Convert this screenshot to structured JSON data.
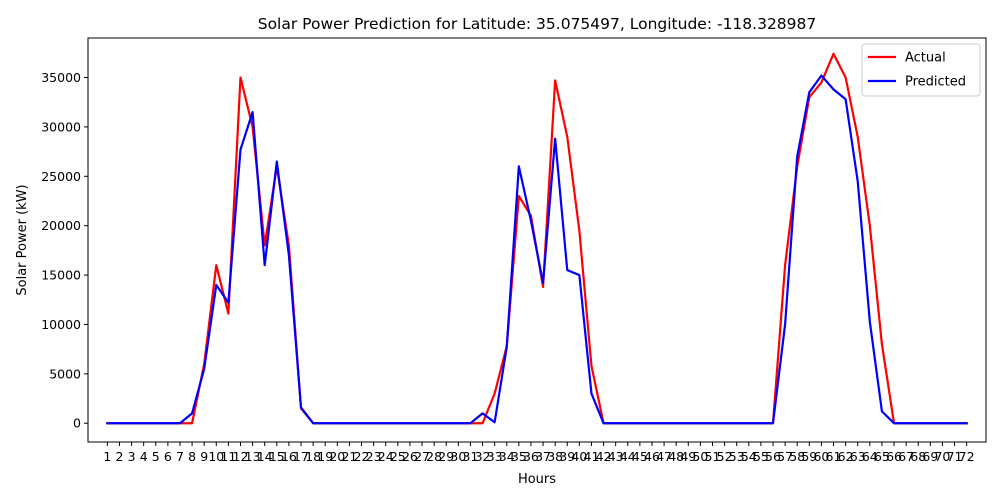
{
  "chart_data": {
    "type": "line",
    "title": "Solar Power Prediction for Latitude: 35.075497, Longitude: -118.328987",
    "xlabel": "Hours",
    "ylabel": "Solar Power (kW)",
    "x": [
      1,
      2,
      3,
      4,
      5,
      6,
      7,
      8,
      9,
      10,
      11,
      12,
      13,
      14,
      15,
      16,
      17,
      18,
      19,
      20,
      21,
      22,
      23,
      24,
      25,
      26,
      27,
      28,
      29,
      30,
      31,
      32,
      33,
      34,
      35,
      36,
      37,
      38,
      39,
      40,
      41,
      42,
      43,
      44,
      45,
      46,
      47,
      48,
      49,
      50,
      51,
      52,
      53,
      54,
      55,
      56,
      57,
      58,
      59,
      60,
      61,
      62,
      63,
      64,
      65,
      66,
      67,
      68,
      69,
      70,
      71,
      72
    ],
    "yticks": [
      0,
      5000,
      10000,
      15000,
      20000,
      25000,
      30000,
      35000
    ],
    "ylim": [
      -1900,
      39000
    ],
    "xlim": [
      -0.6,
      73.6
    ],
    "grid": false,
    "legend": "top-right",
    "series": [
      {
        "name": "Actual",
        "color": "#ff0000",
        "values": [
          0,
          0,
          0,
          0,
          0,
          0,
          0,
          0,
          6000,
          16000,
          11100,
          35000,
          30000,
          18000,
          26000,
          18000,
          1500,
          0,
          0,
          0,
          0,
          0,
          0,
          0,
          0,
          0,
          0,
          0,
          0,
          0,
          0,
          0,
          3000,
          7800,
          23000,
          21000,
          13800,
          34700,
          29000,
          19500,
          5800,
          0,
          0,
          0,
          0,
          0,
          0,
          0,
          0,
          0,
          0,
          0,
          0,
          0,
          0,
          0,
          16000,
          26000,
          33000,
          34500,
          37400,
          35000,
          29000,
          20000,
          8000,
          0,
          0,
          0,
          0,
          0,
          0,
          0
        ]
      },
      {
        "name": "Predicted",
        "color": "#0000ff",
        "values": [
          0,
          0,
          0,
          0,
          0,
          0,
          0,
          1000,
          5500,
          14000,
          12200,
          27700,
          31500,
          16000,
          26500,
          17000,
          1600,
          0,
          0,
          0,
          0,
          0,
          0,
          0,
          0,
          0,
          0,
          0,
          0,
          0,
          0,
          1000,
          100,
          7700,
          26000,
          20500,
          14200,
          28800,
          15500,
          15000,
          3000,
          0,
          0,
          0,
          0,
          0,
          0,
          0,
          0,
          0,
          0,
          0,
          0,
          0,
          0,
          0,
          10000,
          27000,
          33500,
          35200,
          33800,
          32800,
          24500,
          10300,
          1200,
          0,
          0,
          0,
          0,
          0,
          0,
          0
        ]
      }
    ]
  }
}
